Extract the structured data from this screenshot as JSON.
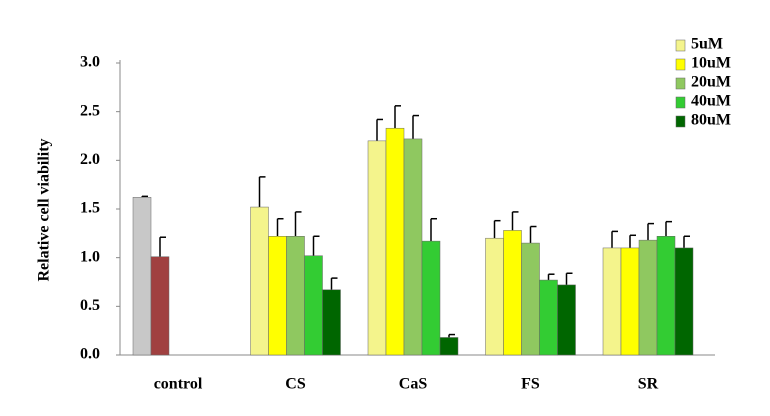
{
  "chart_data": {
    "type": "bar",
    "ylabel": "Relative cell viability",
    "categories": [
      "control",
      "CS",
      "CaS",
      "FS",
      "SR"
    ],
    "control": {
      "values": [
        1.62,
        1.01
      ],
      "errors": [
        0.01,
        0.2
      ],
      "colors": [
        "#c8c8c8",
        "#a04040"
      ]
    },
    "series": [
      {
        "name": "5uM",
        "color": "#f4f48c",
        "values": [
          null,
          1.52,
          2.2,
          1.2,
          1.1
        ],
        "errors": [
          null,
          0.31,
          0.22,
          0.18,
          0.17
        ]
      },
      {
        "name": "10uM",
        "color": "#ffff00",
        "values": [
          null,
          1.22,
          2.33,
          1.28,
          1.1
        ],
        "errors": [
          null,
          0.18,
          0.23,
          0.19,
          0.13
        ]
      },
      {
        "name": "20uM",
        "color": "#8fc860",
        "values": [
          null,
          1.22,
          2.22,
          1.15,
          1.18
        ],
        "errors": [
          null,
          0.25,
          0.24,
          0.17,
          0.17
        ]
      },
      {
        "name": "40uM",
        "color": "#33cc33",
        "values": [
          null,
          1.02,
          1.17,
          0.77,
          1.22
        ],
        "errors": [
          null,
          0.2,
          0.23,
          0.06,
          0.15
        ]
      },
      {
        "name": "80uM",
        "color": "#006600",
        "values": [
          null,
          0.67,
          0.18,
          0.72,
          1.1
        ],
        "errors": [
          null,
          0.12,
          0.03,
          0.12,
          0.12
        ]
      }
    ],
    "ylim": [
      0,
      3
    ],
    "yticks": [
      {
        "value": 0,
        "label": "0.0"
      },
      0.5,
      {
        "value": 1,
        "label": "1.0"
      },
      1.5,
      {
        "value": 2,
        "label": "2.0"
      },
      2.5,
      {
        "value": 3,
        "label": "3.0"
      }
    ],
    "grid": false,
    "legend": "top-right"
  }
}
